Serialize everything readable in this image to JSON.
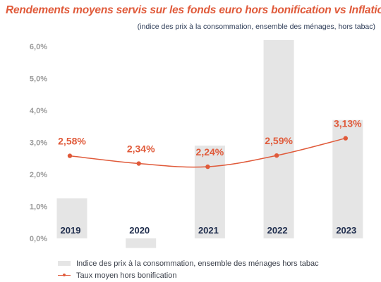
{
  "title": "Rendements moyens servis sur les fonds euro hors bonification vs Inflation",
  "subtitle": "(indice des prix à la consommation, ensemble des ménages, hors tabac)",
  "colors": {
    "accent": "#e05a3a",
    "bar": "#e5e5e5",
    "year_label": "#1f2d4d",
    "axis_label": "#9a9a9a"
  },
  "legend": {
    "bars": "Indice des prix à la consommation, ensemble des ménages hors tabac",
    "line": "Taux moyen hors bonification"
  },
  "chart_data": {
    "type": "bar",
    "categories": [
      "2019",
      "2020",
      "2021",
      "2022",
      "2023"
    ],
    "series": [
      {
        "name": "Indice des prix à la consommation, ensemble des ménages hors tabac",
        "type": "bar",
        "values": [
          1.25,
          -0.3,
          2.9,
          6.2,
          3.7
        ]
      },
      {
        "name": "Taux moyen hors bonification",
        "type": "line",
        "values": [
          2.58,
          2.34,
          2.24,
          2.59,
          3.13
        ],
        "labels": [
          "2,58%",
          "2,34%",
          "2,24%",
          "2,59%",
          "3,13%"
        ]
      }
    ],
    "ylim": [
      0,
      6.0
    ],
    "yticks": [
      "0,0%",
      "1,0%",
      "2,0%",
      "3,0%",
      "4,0%",
      "5,0%",
      "6,0%"
    ],
    "ytick_values": [
      0,
      1,
      2,
      3,
      4,
      5,
      6
    ],
    "grid": false,
    "legend_position": "bottom-left"
  }
}
